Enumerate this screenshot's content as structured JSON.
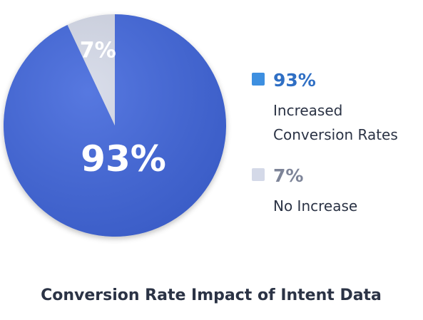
{
  "chart_data": {
    "type": "pie",
    "title": "Conversion Rate Impact of Intent Data",
    "slices": [
      {
        "value": 93,
        "slice_label": "93%",
        "legend_value": "93%",
        "legend_lines": [
          "Increased",
          "Conversion Rates"
        ],
        "color": "#3f66dc",
        "swatch_color": "#3d8fe0",
        "legend_value_color": "#2f6fc4"
      },
      {
        "value": 7,
        "slice_label": "7%",
        "legend_value": "7%",
        "legend_lines": [
          "No Increase"
        ],
        "color": "#d4d9e8",
        "swatch_color": "#d4d9e8",
        "legend_value_color": "#7d8498"
      }
    ],
    "legend_placement": "right"
  }
}
